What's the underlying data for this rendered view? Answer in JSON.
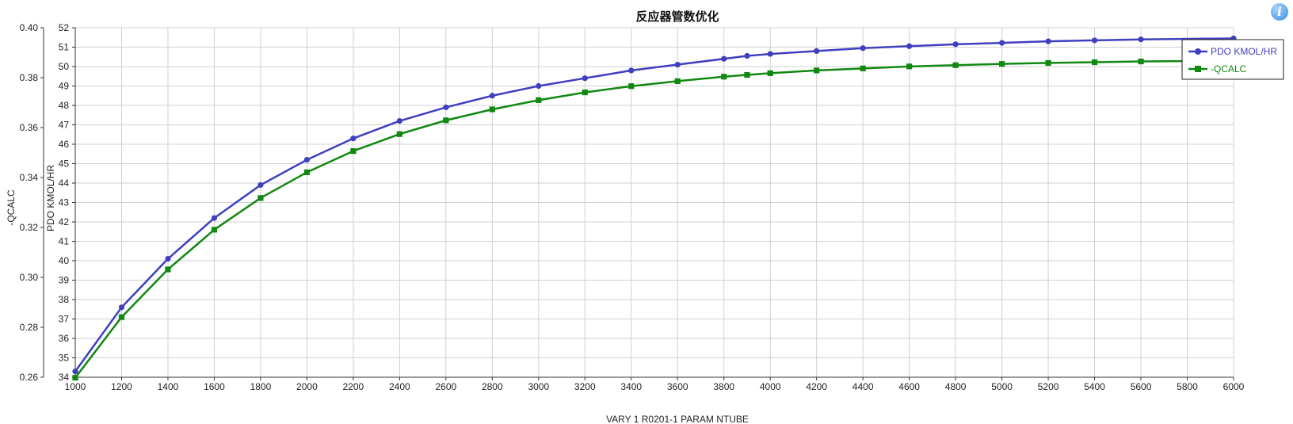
{
  "chart_data": {
    "type": "line",
    "title": "反应器管数优化",
    "xlabel": "VARY   1 R0201-1 PARAM NTUBE",
    "ylabel_left_outer": "-QCALC",
    "ylabel_left_inner": "PDO KMOL/HR",
    "xlim": [
      1000,
      6000
    ],
    "x_ticks": [
      1000,
      1200,
      1400,
      1600,
      1800,
      2000,
      2200,
      2400,
      2600,
      2800,
      3000,
      3200,
      3400,
      3600,
      3800,
      4000,
      4200,
      4400,
      4600,
      4800,
      5000,
      5200,
      5400,
      5600,
      5800,
      6000
    ],
    "y_left_outer": {
      "lim": [
        0.26,
        0.4
      ],
      "ticks": [
        0.26,
        0.28,
        0.3,
        0.32,
        0.34,
        0.36,
        0.38,
        0.4
      ],
      "tick_labels": [
        "0.26",
        "0.28",
        "0.30",
        "0.32",
        "0.34",
        "0.36",
        "0.38",
        "0.40"
      ]
    },
    "y_left_inner": {
      "lim": [
        34,
        52
      ],
      "ticks": [
        34,
        35,
        36,
        37,
        38,
        39,
        40,
        41,
        42,
        43,
        44,
        45,
        46,
        47,
        48,
        49,
        50,
        51,
        52
      ]
    },
    "x": [
      1000,
      1200,
      1400,
      1600,
      1800,
      2000,
      2200,
      2400,
      2600,
      2800,
      3000,
      3200,
      3400,
      3600,
      3800,
      3900,
      4000,
      4200,
      4400,
      4600,
      4800,
      5000,
      5200,
      5400,
      5600,
      6000
    ],
    "series": [
      {
        "name": "PDO KMOL/HR",
        "axis": "inner",
        "color": "#3f3fbf",
        "marker": "circle",
        "values": [
          34.3,
          37.6,
          40.1,
          42.2,
          43.9,
          45.2,
          46.3,
          47.2,
          47.9,
          48.5,
          49.0,
          49.4,
          49.8,
          50.1,
          50.4,
          50.55,
          50.65,
          50.8,
          50.95,
          51.05,
          51.15,
          51.22,
          51.3,
          51.35,
          51.4,
          51.45
        ]
      },
      {
        "name": "-QCALC",
        "axis": "outer",
        "color": "#118811",
        "marker": "square",
        "values": [
          0.2598,
          0.2841,
          0.3032,
          0.3191,
          0.3318,
          0.3421,
          0.3506,
          0.3574,
          0.3629,
          0.3673,
          0.371,
          0.3741,
          0.3766,
          0.3786,
          0.3804,
          0.3811,
          0.3818,
          0.3829,
          0.3837,
          0.3845,
          0.385,
          0.3855,
          0.3859,
          0.3862,
          0.3865,
          0.3868
        ]
      }
    ],
    "grid": true,
    "legend_position": "top-right"
  },
  "icons": {
    "info": "info-icon"
  },
  "info_glyph": "i"
}
